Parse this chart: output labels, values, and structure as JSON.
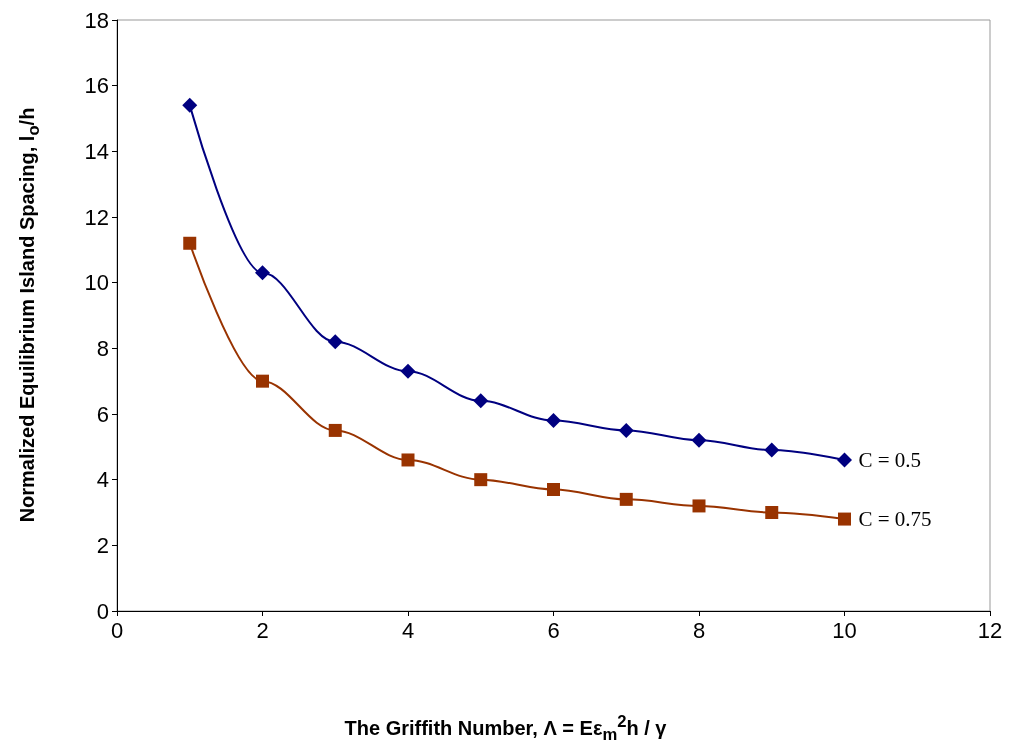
{
  "chart_data": {
    "type": "line",
    "xlabel": "The Griffith Number, Λ = Eε$_{m}$$^{2}$h / γ",
    "ylabel": "Normalized Equilibrium Island Spacing, l$_{o}$/h",
    "x": [
      1,
      2,
      3,
      4,
      5,
      6,
      7,
      8,
      9,
      10
    ],
    "series": [
      {
        "name": "C = 0.5",
        "color": "#000080",
        "marker": "diamond",
        "values": [
          15.4,
          10.3,
          8.2,
          7.3,
          6.4,
          5.8,
          5.5,
          5.2,
          4.9,
          4.6
        ]
      },
      {
        "name": "C = 0.75",
        "color": "#993300",
        "marker": "square",
        "values": [
          11.2,
          7.0,
          5.5,
          4.6,
          4.0,
          3.7,
          3.4,
          3.2,
          3.0,
          2.8
        ]
      }
    ],
    "xlim": [
      0,
      12
    ],
    "xticks": [
      0,
      2,
      4,
      6,
      8,
      10,
      12
    ],
    "ylim": [
      0,
      18
    ],
    "yticks": [
      0,
      2,
      4,
      6,
      8,
      10,
      12,
      14,
      16,
      18
    ],
    "grid": false,
    "legend": false,
    "line_style": "solid"
  }
}
